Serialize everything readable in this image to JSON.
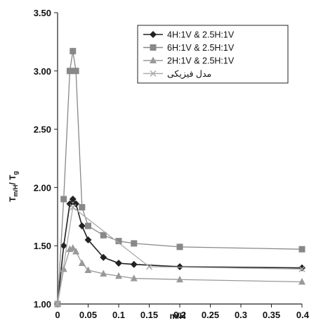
{
  "chart_data": {
    "type": "line",
    "xlabel": "m/H",
    "ylabel": "T",
    "ylabel_sub": "m/H",
    "ylabel_sep": "/ T",
    "ylabel_sub2": "g",
    "xlim": [
      0,
      0.4
    ],
    "ylim": [
      1.0,
      3.5
    ],
    "x_ticks": [
      "0",
      "0.05",
      "0.1",
      "0.15",
      "0.2",
      "0.25",
      "0.3",
      "0.35",
      "0.4"
    ],
    "x_tick_values": [
      0,
      0.05,
      0.1,
      0.15,
      0.2,
      0.25,
      0.3,
      0.35,
      0.4
    ],
    "y_ticks": [
      "1.00",
      "1.50",
      "2.00",
      "2.50",
      "3.00",
      "3.50"
    ],
    "y_tick_values": [
      1.0,
      1.5,
      2.0,
      2.5,
      3.0,
      3.5
    ],
    "grid": false,
    "legend_position": "top-right",
    "series": [
      {
        "name": "4H:1V & 2.5H:1V",
        "marker": "diamond",
        "color": "#222222",
        "x": [
          0,
          0.01,
          0.02,
          0.025,
          0.03,
          0.04,
          0.05,
          0.075,
          0.1,
          0.125,
          0.2,
          0.4
        ],
        "y": [
          1.0,
          1.5,
          1.86,
          1.9,
          1.86,
          1.67,
          1.55,
          1.4,
          1.35,
          1.34,
          1.32,
          1.31
        ]
      },
      {
        "name": "6H:1V & 2.5H:1V",
        "marker": "square",
        "color": "#888888",
        "x": [
          0,
          0.01,
          0.02,
          0.025,
          0.03,
          0.04,
          0.05,
          0.075,
          0.1,
          0.125,
          0.2,
          0.4
        ],
        "y": [
          1.0,
          1.9,
          3.0,
          3.17,
          3.0,
          1.83,
          1.67,
          1.59,
          1.54,
          1.52,
          1.49,
          1.47
        ]
      },
      {
        "name": "2H:1V & 2.5H:1V",
        "marker": "triangle",
        "color": "#999999",
        "x": [
          0,
          0.01,
          0.02,
          0.025,
          0.03,
          0.04,
          0.05,
          0.075,
          0.1,
          0.125,
          0.2,
          0.4
        ],
        "y": [
          1.0,
          1.3,
          1.47,
          1.48,
          1.45,
          1.35,
          1.29,
          1.26,
          1.24,
          1.22,
          1.21,
          1.19
        ]
      },
      {
        "name": "مدل فیزیکی",
        "marker": "x",
        "color": "#aaaaaa",
        "x": [
          0,
          0.025,
          0.15,
          0.4
        ],
        "y": [
          1.0,
          1.83,
          1.32,
          1.3
        ]
      }
    ]
  }
}
